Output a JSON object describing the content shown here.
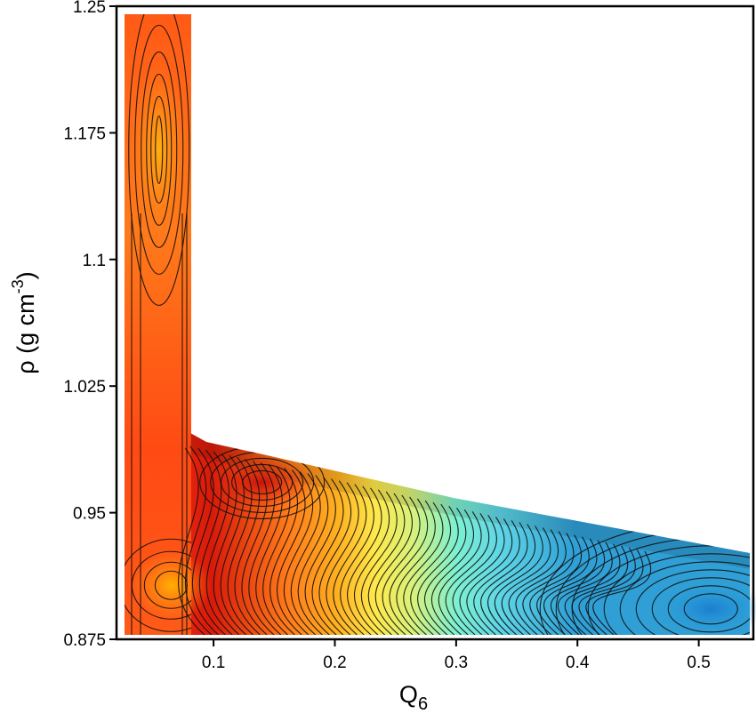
{
  "chart_data": {
    "type": "heatmap",
    "subtype": "filled-contour",
    "xlabel_main": "Q",
    "xlabel_sub": "6",
    "ylabel_main": "ρ (g cm",
    "ylabel_sup": "-3",
    "ylabel_end": ")",
    "xlim": [
      0.02,
      0.545
    ],
    "ylim": [
      0.875,
      1.25
    ],
    "xticks": [
      0.1,
      0.2,
      0.3,
      0.4,
      0.5
    ],
    "xtick_labels": [
      "0.1",
      "0.2",
      "0.3",
      "0.4",
      "0.5"
    ],
    "yticks": [
      0.875,
      0.95,
      1.025,
      1.1,
      1.175,
      1.25
    ],
    "ytick_labels": [
      "0.875",
      "0.95",
      "1.025",
      "1.1",
      "1.175",
      "1.25"
    ],
    "colormap": [
      "#1a4fa3",
      "#2f9fd6",
      "#5fd6e6",
      "#7df0d0",
      "#d8f27a",
      "#ffe84a",
      "#ffb020",
      "#ff7a1a",
      "#ff3a12",
      "#d81a0a"
    ],
    "grid": false,
    "minima": [
      {
        "q6": 0.055,
        "rho": 1.165,
        "color": "#ffa010"
      },
      {
        "q6": 0.065,
        "rho": 0.907,
        "color": "#ffa000"
      },
      {
        "q6": 0.14,
        "rho": 0.968,
        "color": "#d81a0a"
      },
      {
        "q6": 0.51,
        "rho": 0.893,
        "color": "#1e88d2"
      }
    ]
  }
}
